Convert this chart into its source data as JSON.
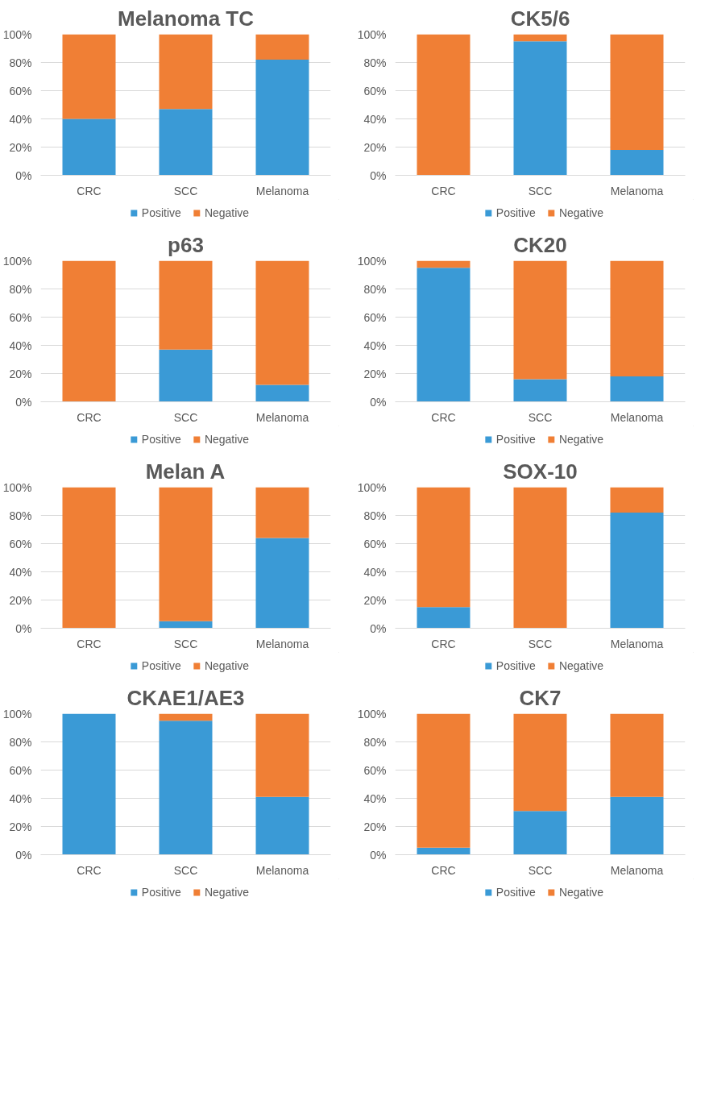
{
  "chart_data": [
    {
      "type": "bar",
      "title": "Melanoma TC",
      "categories": [
        "CRC",
        "SCC",
        "Melanoma"
      ],
      "stacked": true,
      "ylim": [
        0,
        100
      ],
      "yticks": [
        {
          "value": 0,
          "label": "0%"
        },
        {
          "value": 20,
          "label": "20%"
        },
        {
          "value": 40,
          "label": "40%"
        },
        {
          "value": 60,
          "label": "60%"
        },
        {
          "value": 80,
          "label": "80%"
        },
        {
          "value": 100,
          "label": "100%"
        }
      ],
      "grid": "y",
      "legend": "bottom",
      "series": [
        {
          "name": "Positive",
          "color": "#3a9ad6",
          "values": [
            40,
            47,
            82
          ]
        },
        {
          "name": "Negative",
          "color": "#f07f35",
          "values": [
            60,
            53,
            18
          ]
        }
      ]
    },
    {
      "type": "bar",
      "title": "CK5/6",
      "categories": [
        "CRC",
        "SCC",
        "Melanoma"
      ],
      "stacked": true,
      "ylim": [
        0,
        100
      ],
      "yticks": [
        {
          "value": 0,
          "label": "0%"
        },
        {
          "value": 20,
          "label": "20%"
        },
        {
          "value": 40,
          "label": "40%"
        },
        {
          "value": 60,
          "label": "60%"
        },
        {
          "value": 80,
          "label": "80%"
        },
        {
          "value": 100,
          "label": "100%"
        }
      ],
      "grid": "y",
      "legend": "bottom",
      "series": [
        {
          "name": "Positive",
          "color": "#3a9ad6",
          "values": [
            0,
            95,
            18
          ]
        },
        {
          "name": "Negative",
          "color": "#f07f35",
          "values": [
            100,
            5,
            82
          ]
        }
      ]
    },
    {
      "type": "bar",
      "title": "p63",
      "categories": [
        "CRC",
        "SCC",
        "Melanoma"
      ],
      "stacked": true,
      "ylim": [
        0,
        100
      ],
      "yticks": [
        {
          "value": 0,
          "label": "0%"
        },
        {
          "value": 20,
          "label": "20%"
        },
        {
          "value": 40,
          "label": "40%"
        },
        {
          "value": 60,
          "label": "60%"
        },
        {
          "value": 80,
          "label": "80%"
        },
        {
          "value": 100,
          "label": "100%"
        }
      ],
      "grid": "y",
      "legend": "bottom",
      "series": [
        {
          "name": "Positive",
          "color": "#3a9ad6",
          "values": [
            0,
            37,
            12
          ]
        },
        {
          "name": "Negative",
          "color": "#f07f35",
          "values": [
            100,
            63,
            88
          ]
        }
      ]
    },
    {
      "type": "bar",
      "title": "CK20",
      "categories": [
        "CRC",
        "SCC",
        "Melanoma"
      ],
      "stacked": true,
      "ylim": [
        0,
        100
      ],
      "yticks": [
        {
          "value": 0,
          "label": "0%"
        },
        {
          "value": 20,
          "label": "20%"
        },
        {
          "value": 40,
          "label": "40%"
        },
        {
          "value": 60,
          "label": "60%"
        },
        {
          "value": 80,
          "label": "80%"
        },
        {
          "value": 100,
          "label": "100%"
        }
      ],
      "grid": "y",
      "legend": "bottom",
      "series": [
        {
          "name": "Positive",
          "color": "#3a9ad6",
          "values": [
            95,
            16,
            18
          ]
        },
        {
          "name": "Negative",
          "color": "#f07f35",
          "values": [
            5,
            84,
            82
          ]
        }
      ]
    },
    {
      "type": "bar",
      "title": "Melan A",
      "categories": [
        "CRC",
        "SCC",
        "Melanoma"
      ],
      "stacked": true,
      "ylim": [
        0,
        100
      ],
      "yticks": [
        {
          "value": 0,
          "label": "0%"
        },
        {
          "value": 20,
          "label": "20%"
        },
        {
          "value": 40,
          "label": "40%"
        },
        {
          "value": 60,
          "label": "60%"
        },
        {
          "value": 80,
          "label": "80%"
        },
        {
          "value": 100,
          "label": "100%"
        }
      ],
      "grid": "y",
      "legend": "bottom",
      "series": [
        {
          "name": "Positive",
          "color": "#3a9ad6",
          "values": [
            0,
            5,
            64
          ]
        },
        {
          "name": "Negative",
          "color": "#f07f35",
          "values": [
            100,
            95,
            36
          ]
        }
      ]
    },
    {
      "type": "bar",
      "title": "SOX-10",
      "categories": [
        "CRC",
        "SCC",
        "Melanoma"
      ],
      "stacked": true,
      "ylim": [
        0,
        100
      ],
      "yticks": [
        {
          "value": 0,
          "label": "0%"
        },
        {
          "value": 20,
          "label": "20%"
        },
        {
          "value": 40,
          "label": "40%"
        },
        {
          "value": 60,
          "label": "60%"
        },
        {
          "value": 80,
          "label": "80%"
        },
        {
          "value": 100,
          "label": "100%"
        }
      ],
      "grid": "y",
      "legend": "bottom",
      "series": [
        {
          "name": "Positive",
          "color": "#3a9ad6",
          "values": [
            15,
            0,
            82
          ]
        },
        {
          "name": "Negative",
          "color": "#f07f35",
          "values": [
            85,
            100,
            18
          ]
        }
      ]
    },
    {
      "type": "bar",
      "title": "CKAE1/AE3",
      "categories": [
        "CRC",
        "SCC",
        "Melanoma"
      ],
      "stacked": true,
      "ylim": [
        0,
        100
      ],
      "yticks": [
        {
          "value": 0,
          "label": "0%"
        },
        {
          "value": 20,
          "label": "20%"
        },
        {
          "value": 40,
          "label": "40%"
        },
        {
          "value": 60,
          "label": "60%"
        },
        {
          "value": 80,
          "label": "80%"
        },
        {
          "value": 100,
          "label": "100%"
        }
      ],
      "grid": "y",
      "legend": "bottom",
      "series": [
        {
          "name": "Positive",
          "color": "#3a9ad6",
          "values": [
            100,
            95,
            41
          ]
        },
        {
          "name": "Negative",
          "color": "#f07f35",
          "values": [
            0,
            5,
            59
          ]
        }
      ]
    },
    {
      "type": "bar",
      "title": "CK7",
      "categories": [
        "CRC",
        "SCC",
        "Melanoma"
      ],
      "stacked": true,
      "ylim": [
        0,
        100
      ],
      "yticks": [
        {
          "value": 0,
          "label": "0%"
        },
        {
          "value": 20,
          "label": "20%"
        },
        {
          "value": 40,
          "label": "40%"
        },
        {
          "value": 60,
          "label": "60%"
        },
        {
          "value": 80,
          "label": "80%"
        },
        {
          "value": 100,
          "label": "100%"
        }
      ],
      "grid": "y",
      "legend": "bottom",
      "series": [
        {
          "name": "Positive",
          "color": "#3a9ad6",
          "values": [
            5,
            31,
            41
          ]
        },
        {
          "name": "Negative",
          "color": "#f07f35",
          "values": [
            95,
            69,
            59
          ]
        }
      ]
    }
  ]
}
